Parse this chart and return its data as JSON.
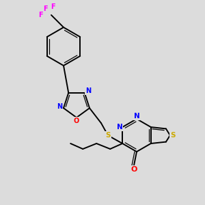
{
  "background_color": "#dcdcdc",
  "bond_color": "#000000",
  "atom_colors": {
    "N": "#0000ff",
    "O": "#ff0000",
    "S": "#ccaa00",
    "F": "#ff00ff",
    "C": "#000000"
  },
  "figsize": [
    3.0,
    3.0
  ],
  "dpi": 100
}
